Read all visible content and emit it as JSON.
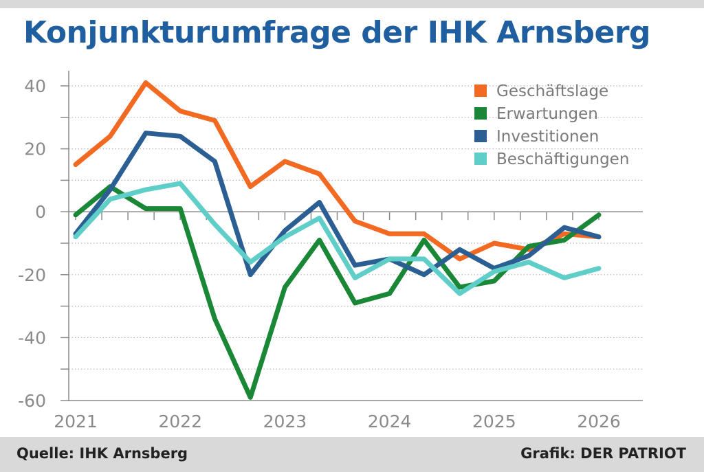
{
  "header": {
    "title": "Konjunkturumfrage der IHK Arnsberg"
  },
  "footer": {
    "source": "Quelle: IHK Arnsberg",
    "credit": "Grafik: DER PATRIOT"
  },
  "chart_data": {
    "type": "line",
    "title": "Konjunkturumfrage der IHK Arnsberg",
    "xlabel": "",
    "ylabel": "",
    "xlim": [
      2021,
      2026.2
    ],
    "ylim": [
      -60,
      40
    ],
    "yticks": [
      40,
      20,
      0,
      -20,
      -40,
      -60
    ],
    "xticks": [
      2021,
      2022,
      2023,
      2024,
      2025,
      2026
    ],
    "xtick_labels": [
      "2021",
      "2022",
      "2023",
      "2024",
      "2025",
      "2026"
    ],
    "grid": true,
    "legend_position": "top-right",
    "x": [
      2021.0,
      2021.33,
      2021.67,
      2022.0,
      2022.33,
      2022.67,
      2023.0,
      2023.33,
      2023.67,
      2024.0,
      2024.33,
      2024.67,
      2025.0,
      2025.33,
      2025.67,
      2026.0
    ],
    "series": [
      {
        "name": "Geschäftslage",
        "color": "#f26a22",
        "values": [
          15,
          24,
          41,
          32,
          29,
          8,
          16,
          12,
          -3,
          -7,
          -7,
          -15,
          -10,
          -12,
          -7,
          -8
        ]
      },
      {
        "name": "Erwartungen",
        "color": "#1a8737",
        "values": [
          -1,
          8,
          1,
          1,
          -34,
          -59,
          -24,
          -9,
          -29,
          -26,
          -9,
          -24,
          -22,
          -11,
          -9,
          -1
        ]
      },
      {
        "name": "Investitionen",
        "color": "#2b5f93",
        "values": [
          -7,
          7,
          25,
          24,
          16,
          -20,
          -6,
          3,
          -17,
          -15,
          -20,
          -12,
          -18,
          -14,
          -5,
          -8
        ]
      },
      {
        "name": "Beschäftigungen",
        "color": "#5fcdc8",
        "values": [
          -8,
          4,
          7,
          9,
          -4,
          -16,
          -8,
          -2,
          -21,
          -15,
          -15,
          -26,
          -19,
          -16,
          -21,
          -18
        ]
      }
    ]
  }
}
